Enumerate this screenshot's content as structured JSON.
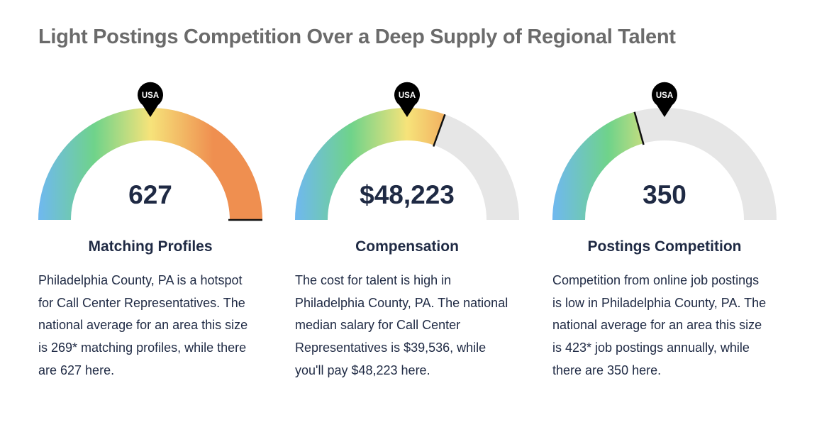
{
  "page": {
    "title": "Light Postings Competition Over a Deep Supply of Regional Talent"
  },
  "chart_data": [
    {
      "type": "gauge",
      "marker_label": "USA",
      "value": 627,
      "value_text": "627",
      "label": "Matching Profiles",
      "national_average": 269,
      "description": "Philadelphia County, PA is a hotspot for Call Center Representatives. The national average for an area this size is 269* matching profiles, while there are 627 here."
    },
    {
      "type": "gauge",
      "marker_label": "USA",
      "value": 48223,
      "value_text": "$48,223",
      "label": "Compensation",
      "national_average": 39536,
      "description": "The cost for talent is high in Philadelphia County, PA. The national median salary for Call Center Representatives is $39,536, while you'll pay $48,223 here."
    },
    {
      "type": "gauge",
      "marker_label": "USA",
      "value": 350,
      "value_text": "350",
      "label": "Postings Competition",
      "national_average": 423,
      "description": "Competition from online job postings is low in Philadelphia County, PA. The national average for an area this size is 423* job postings annually, while there are 350 here."
    }
  ],
  "colors": {
    "track": "#e6e6e6",
    "gradient_start": "#6fb8f0",
    "gradient_mid1": "#6fd38a",
    "gradient_mid2": "#f6e37a",
    "gradient_end": "#ef8f50",
    "marker": "#000000",
    "marker_text": "#ffffff"
  }
}
